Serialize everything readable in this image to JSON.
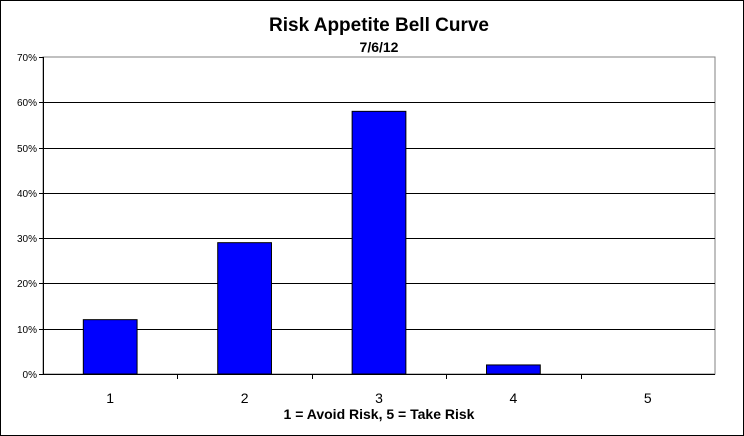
{
  "chart_data": {
    "type": "bar",
    "title": "Risk Appetite Bell Curve",
    "subtitle": "7/6/12",
    "xlabel": "1 = Avoid Risk, 5 = Take Risk",
    "ylabel": "",
    "categories": [
      "1",
      "2",
      "3",
      "4",
      "5"
    ],
    "values": [
      0.12,
      0.29,
      0.58,
      0.02,
      0
    ],
    "ylim": [
      0,
      0.7
    ],
    "yticks": [
      0,
      0.1,
      0.2,
      0.3,
      0.4,
      0.5,
      0.6,
      0.7
    ],
    "ytick_labels": [
      "0%",
      "10%",
      "20%",
      "30%",
      "40%",
      "50%",
      "60%",
      "70%"
    ],
    "grid": true,
    "legend": "none",
    "colors": {
      "bar": "#0000ff",
      "bar_border": "#000000",
      "gridline": "#000000",
      "plot_border": "#808080",
      "background": "#ffffff"
    }
  }
}
